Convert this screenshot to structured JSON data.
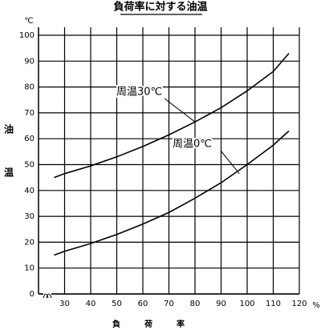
{
  "chart_data": {
    "type": "line",
    "title": "負荷率に対する油温",
    "xlabel": "負荷率",
    "ylabel": "油温",
    "x_unit": "%",
    "y_unit": "℃",
    "xlim": [
      20,
      120
    ],
    "ylim": [
      0,
      100
    ],
    "xticks": [
      30,
      40,
      50,
      60,
      70,
      80,
      90,
      100,
      110,
      120
    ],
    "yticks": [
      0,
      10,
      20,
      30,
      40,
      50,
      60,
      70,
      80,
      90,
      100
    ],
    "grid": true,
    "series": [
      {
        "name": "周温30℃",
        "color": "#000000",
        "x": [
          26,
          30,
          40,
          50,
          60,
          70,
          80,
          90,
          100,
          110,
          116
        ],
        "values": [
          45,
          46.5,
          49.5,
          53,
          57,
          61.5,
          66.5,
          72,
          78.5,
          86,
          93
        ]
      },
      {
        "name": "周温0℃",
        "color": "#000000",
        "x": [
          26,
          30,
          40,
          50,
          60,
          70,
          80,
          90,
          100,
          110,
          116
        ],
        "values": [
          15,
          16.5,
          19.5,
          23,
          27,
          31.5,
          37,
          43,
          50,
          57.5,
          63
        ]
      }
    ]
  }
}
